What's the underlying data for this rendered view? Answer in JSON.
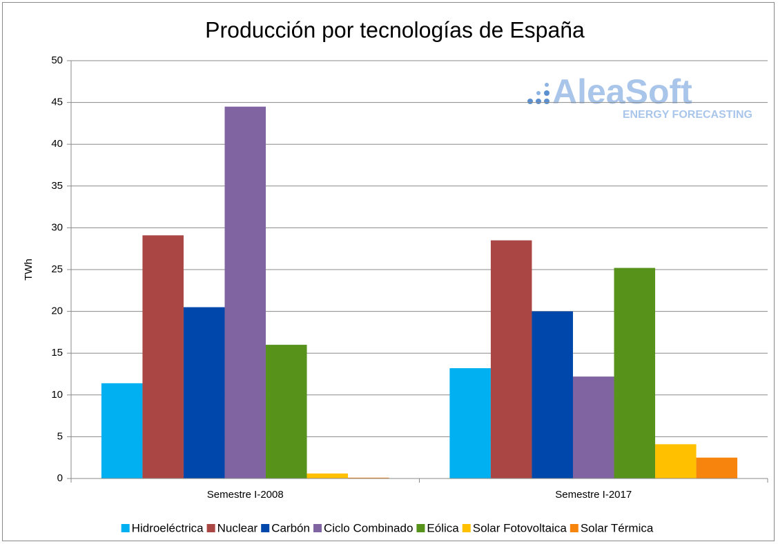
{
  "chart_data": {
    "type": "bar",
    "title": "Producción por tecnologías de España",
    "y_label": "TWh",
    "logo": {
      "name": "AleaSoft",
      "tagline": "ENERGY FORECASTING"
    },
    "categories": [
      "Semestre I-2008",
      "Semestre I-2017"
    ],
    "series": [
      {
        "name": "Hidroeléctrica",
        "color": "#00b0f0",
        "values": [
          11.4,
          13.2
        ]
      },
      {
        "name": "Nuclear",
        "color": "#aa4643",
        "values": [
          29.1,
          28.5
        ]
      },
      {
        "name": "Carbón",
        "color": "#0047ab",
        "values": [
          20.5,
          20.0
        ]
      },
      {
        "name": "Ciclo Combinado",
        "color": "#8064a2",
        "values": [
          44.5,
          12.2
        ]
      },
      {
        "name": "Eólica",
        "color": "#57921a",
        "values": [
          16.0,
          25.2
        ]
      },
      {
        "name": "Solar Fotovoltaica",
        "color": "#ffc000",
        "values": [
          0.6,
          4.1
        ]
      },
      {
        "name": "Solar Térmica",
        "color": "#f7840c",
        "values": [
          0.1,
          2.5
        ]
      }
    ],
    "ylim": [
      0,
      50
    ],
    "yticks": [
      0,
      5,
      10,
      15,
      20,
      25,
      30,
      35,
      40,
      45,
      50
    ],
    "grid": true,
    "legend": "bottom"
  }
}
